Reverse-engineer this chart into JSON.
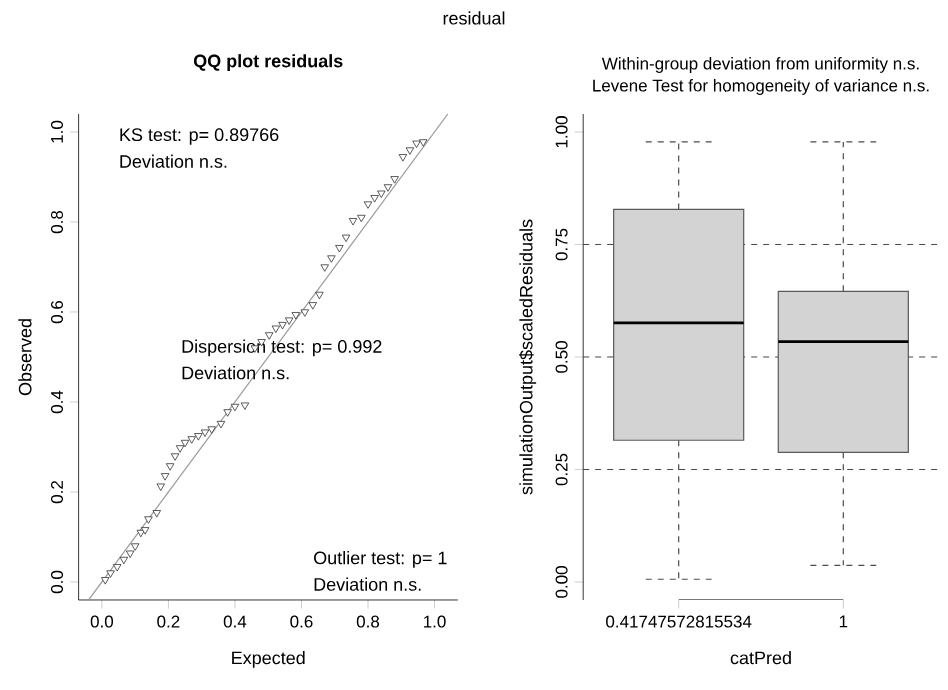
{
  "chart_data": [
    {
      "type": "scatter",
      "title": "QQ plot residuals",
      "xlabel": "Expected",
      "ylabel": "Observed",
      "xlim": [
        -0.07,
        1.07
      ],
      "ylim": [
        -0.04,
        1.04
      ],
      "xticks": [
        {
          "value": 0,
          "label": "0.0"
        },
        {
          "value": 0.2,
          "label": "0.2"
        },
        {
          "value": 0.4,
          "label": "0.4"
        },
        {
          "value": 0.6,
          "label": "0.6"
        },
        {
          "value": 0.8,
          "label": "0.8"
        },
        {
          "value": 1,
          "label": "1.0"
        }
      ],
      "yticks": [
        {
          "value": 0,
          "label": "0.0"
        },
        {
          "value": 0.2,
          "label": "0.2"
        },
        {
          "value": 0.4,
          "label": "0.4"
        },
        {
          "value": 0.6,
          "label": "0.6"
        },
        {
          "value": 0.8,
          "label": "0.8"
        },
        {
          "value": 1,
          "label": "1.0"
        }
      ],
      "series": [
        {
          "type": "scatter",
          "marker": "triangle",
          "color": "#333333",
          "x": [
            0.01,
            0.026,
            0.046,
            0.066,
            0.085,
            0.1,
            0.117,
            0.13,
            0.14,
            0.165,
            0.177,
            0.19,
            0.205,
            0.22,
            0.235,
            0.25,
            0.27,
            0.29,
            0.31,
            0.33,
            0.358,
            0.378,
            0.4,
            0.43,
            0.46,
            0.48,
            0.503,
            0.523,
            0.543,
            0.563,
            0.583,
            0.61,
            0.634,
            0.654,
            0.67,
            0.69,
            0.714,
            0.734,
            0.755,
            0.78,
            0.8,
            0.82,
            0.84,
            0.86,
            0.88,
            0.905,
            0.926,
            0.946,
            0.966
          ],
          "values": [
            0.005,
            0.02,
            0.034,
            0.05,
            0.064,
            0.08,
            0.11,
            0.116,
            0.14,
            0.154,
            0.213,
            0.236,
            0.258,
            0.28,
            0.298,
            0.31,
            0.318,
            0.325,
            0.333,
            0.34,
            0.352,
            0.378,
            0.39,
            0.393,
            0.52,
            0.534,
            0.549,
            0.564,
            0.572,
            0.582,
            0.594,
            0.6,
            0.616,
            0.639,
            0.7,
            0.72,
            0.743,
            0.766,
            0.803,
            0.81,
            0.84,
            0.854,
            0.864,
            0.878,
            0.896,
            0.945,
            0.96,
            0.975,
            0.978
          ]
        },
        {
          "type": "line",
          "marker": "none",
          "color": "#999999",
          "x": [
            -0.04,
            1.04
          ],
          "values": [
            -0.04,
            1.04
          ]
        }
      ],
      "annotations": [
        "residual",
        "KS test: p= 0.89766",
        "Deviation n.s.",
        "Dispersion test: p= 0.992",
        "Deviation n.s.",
        "Outlier test: p= 1",
        "Deviation n.s."
      ]
    },
    {
      "type": "box",
      "title": "Within-group deviation from uniformity n.s.",
      "subtitle": "Levene Test for homogeneity of variance n.s.",
      "xlabel": "catPred",
      "ylabel": "simulationOutput$scaledResiduals",
      "categories": [
        "0.41747572815534",
        "1"
      ],
      "color": "#d3d3d3",
      "ylim": [
        -0.04,
        1.04
      ],
      "yticks": [
        {
          "value": 0,
          "label": "0.00"
        },
        {
          "value": 0.25,
          "label": "0.25"
        },
        {
          "value": 0.5,
          "label": "0.50"
        },
        {
          "value": 0.75,
          "label": "0.75"
        },
        {
          "value": 1,
          "label": "1.00"
        }
      ],
      "boxes": [
        {
          "low": 0.006,
          "q1": 0.315,
          "median": 0.576,
          "q3": 0.828,
          "high": 0.978
        },
        {
          "low": 0.037,
          "q1": 0.288,
          "median": 0.534,
          "q3": 0.646,
          "high": 0.978
        }
      ],
      "ref_lines": [
        {
          "axis": "y",
          "value": 0.25,
          "line_style": "dashed",
          "color": "#444444"
        },
        {
          "axis": "y",
          "value": 0.5,
          "line_style": "dashed",
          "color": "#444444"
        },
        {
          "axis": "y",
          "value": 0.75,
          "line_style": "dashed",
          "color": "#444444"
        }
      ]
    }
  ]
}
